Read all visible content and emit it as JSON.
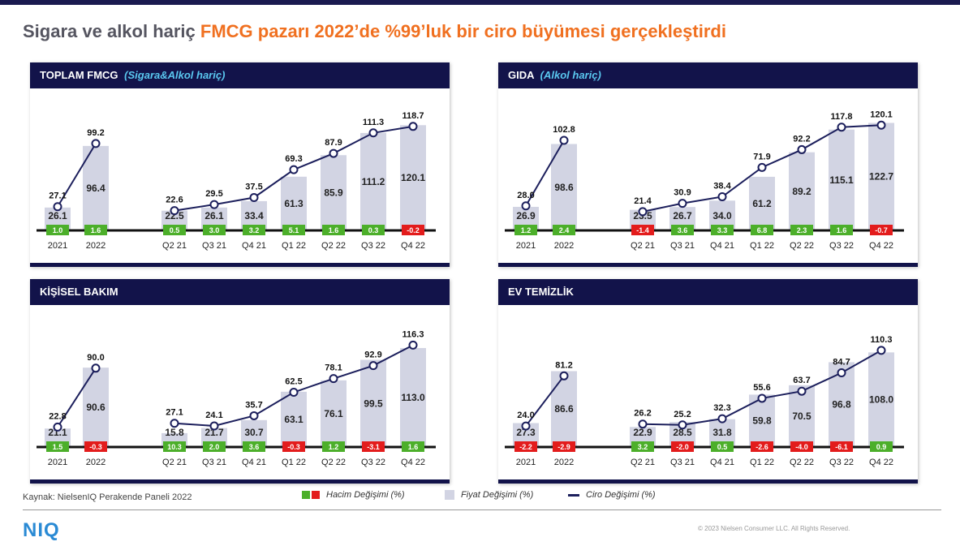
{
  "title": {
    "part1": "Sigara ve alkol hariç",
    "part2": "FMCG pazarı 2022’de %99’luk bir ciro büyümesi gerçekleştirdi"
  },
  "colors": {
    "header_bg": "#12134a",
    "bar_fill": "#d2d4e3",
    "line": "#1c1f5c",
    "positive": "#4caf2a",
    "negative": "#e31c1c",
    "title_accent": "#f07020"
  },
  "footer": {
    "source": "Kaynak: NielsenIQ Perakende Paneli 2022",
    "legend_volume": "Hacim Değişimi (%)",
    "legend_price": "Fiyat Değişimi (%)",
    "legend_turnover": "Ciro Değişimi (%)",
    "logo": "NIQ",
    "copyright": "© 2023 Nielsen Consumer LLC. All Rights Reserved."
  },
  "panels": [
    {
      "title": "TOPLAM FMCG",
      "subtitle": "(Sigara&Alkol hariç)"
    },
    {
      "title": "GIDA",
      "subtitle": "(Alkol hariç)"
    },
    {
      "title": "KİŞİSEL BAKIM",
      "subtitle": ""
    },
    {
      "title": "EV TEMİZLİK",
      "subtitle": ""
    }
  ],
  "chart_data": [
    {
      "type": "bar",
      "title": "TOPLAM FMCG (Sigara&Alkol hariç)",
      "categories": [
        "2021",
        "2022",
        "Q2 21",
        "Q3 21",
        "Q4 21",
        "Q1 22",
        "Q2 22",
        "Q3 22",
        "Q4 22"
      ],
      "series": [
        {
          "name": "Fiyat Değişimi (%)",
          "values": [
            26.1,
            96.4,
            22.5,
            26.1,
            33.4,
            61.3,
            85.9,
            111.2,
            120.1
          ]
        },
        {
          "name": "Hacim Değişimi (%)",
          "values": [
            1.0,
            1.6,
            0.5,
            3.0,
            3.2,
            5.1,
            1.6,
            0.3,
            -0.2
          ]
        },
        {
          "name": "Ciro Değişimi (%)",
          "values": [
            27.1,
            99.2,
            22.6,
            29.5,
            37.5,
            69.3,
            87.9,
            111.3,
            118.7
          ]
        }
      ]
    },
    {
      "type": "bar",
      "title": "GIDA (Alkol hariç)",
      "categories": [
        "2021",
        "2022",
        "Q2 21",
        "Q3 21",
        "Q4 21",
        "Q1 22",
        "Q2 22",
        "Q3 22",
        "Q4 22"
      ],
      "series": [
        {
          "name": "Fiyat Değişimi (%)",
          "values": [
            26.9,
            98.6,
            23.5,
            26.7,
            34.0,
            61.2,
            89.2,
            115.1,
            122.7
          ]
        },
        {
          "name": "Hacim Değişimi (%)",
          "values": [
            1.2,
            2.4,
            -1.4,
            3.6,
            3.3,
            6.8,
            2.3,
            1.6,
            -0.7
          ]
        },
        {
          "name": "Ciro Değişimi (%)",
          "values": [
            28.0,
            102.8,
            21.4,
            30.9,
            38.4,
            71.9,
            92.2,
            117.8,
            120.1
          ]
        }
      ]
    },
    {
      "type": "bar",
      "title": "KİŞİSEL BAKIM",
      "categories": [
        "2021",
        "2022",
        "Q2 21",
        "Q3 21",
        "Q4 21",
        "Q1 22",
        "Q2 22",
        "Q3 22",
        "Q4 22"
      ],
      "series": [
        {
          "name": "Fiyat Değişimi (%)",
          "values": [
            21.1,
            90.6,
            15.8,
            21.7,
            30.7,
            63.1,
            76.1,
            99.5,
            113.0
          ]
        },
        {
          "name": "Hacim Değişimi (%)",
          "values": [
            1.5,
            -0.3,
            10.3,
            2.0,
            3.6,
            -0.3,
            1.2,
            -3.1,
            1.6
          ]
        },
        {
          "name": "Ciro Değişimi (%)",
          "values": [
            22.8,
            90.0,
            27.1,
            24.1,
            35.7,
            62.5,
            78.1,
            92.9,
            116.3
          ]
        }
      ]
    },
    {
      "type": "bar",
      "title": "EV TEMİZLİK",
      "categories": [
        "2021",
        "2022",
        "Q2 21",
        "Q3 21",
        "Q4 21",
        "Q1 22",
        "Q2 22",
        "Q3 22",
        "Q4 22"
      ],
      "series": [
        {
          "name": "Fiyat Değişimi (%)",
          "values": [
            27.3,
            86.6,
            22.9,
            28.5,
            31.8,
            59.8,
            70.5,
            96.8,
            108.0
          ]
        },
        {
          "name": "Hacim Değişimi (%)",
          "values": [
            -2.2,
            -2.9,
            3.2,
            -2.0,
            0.5,
            -2.6,
            -4.0,
            -6.1,
            0.9
          ]
        },
        {
          "name": "Ciro Değişimi (%)",
          "values": [
            24.0,
            81.2,
            26.2,
            25.2,
            32.3,
            55.6,
            63.7,
            84.7,
            110.3
          ]
        }
      ]
    }
  ]
}
